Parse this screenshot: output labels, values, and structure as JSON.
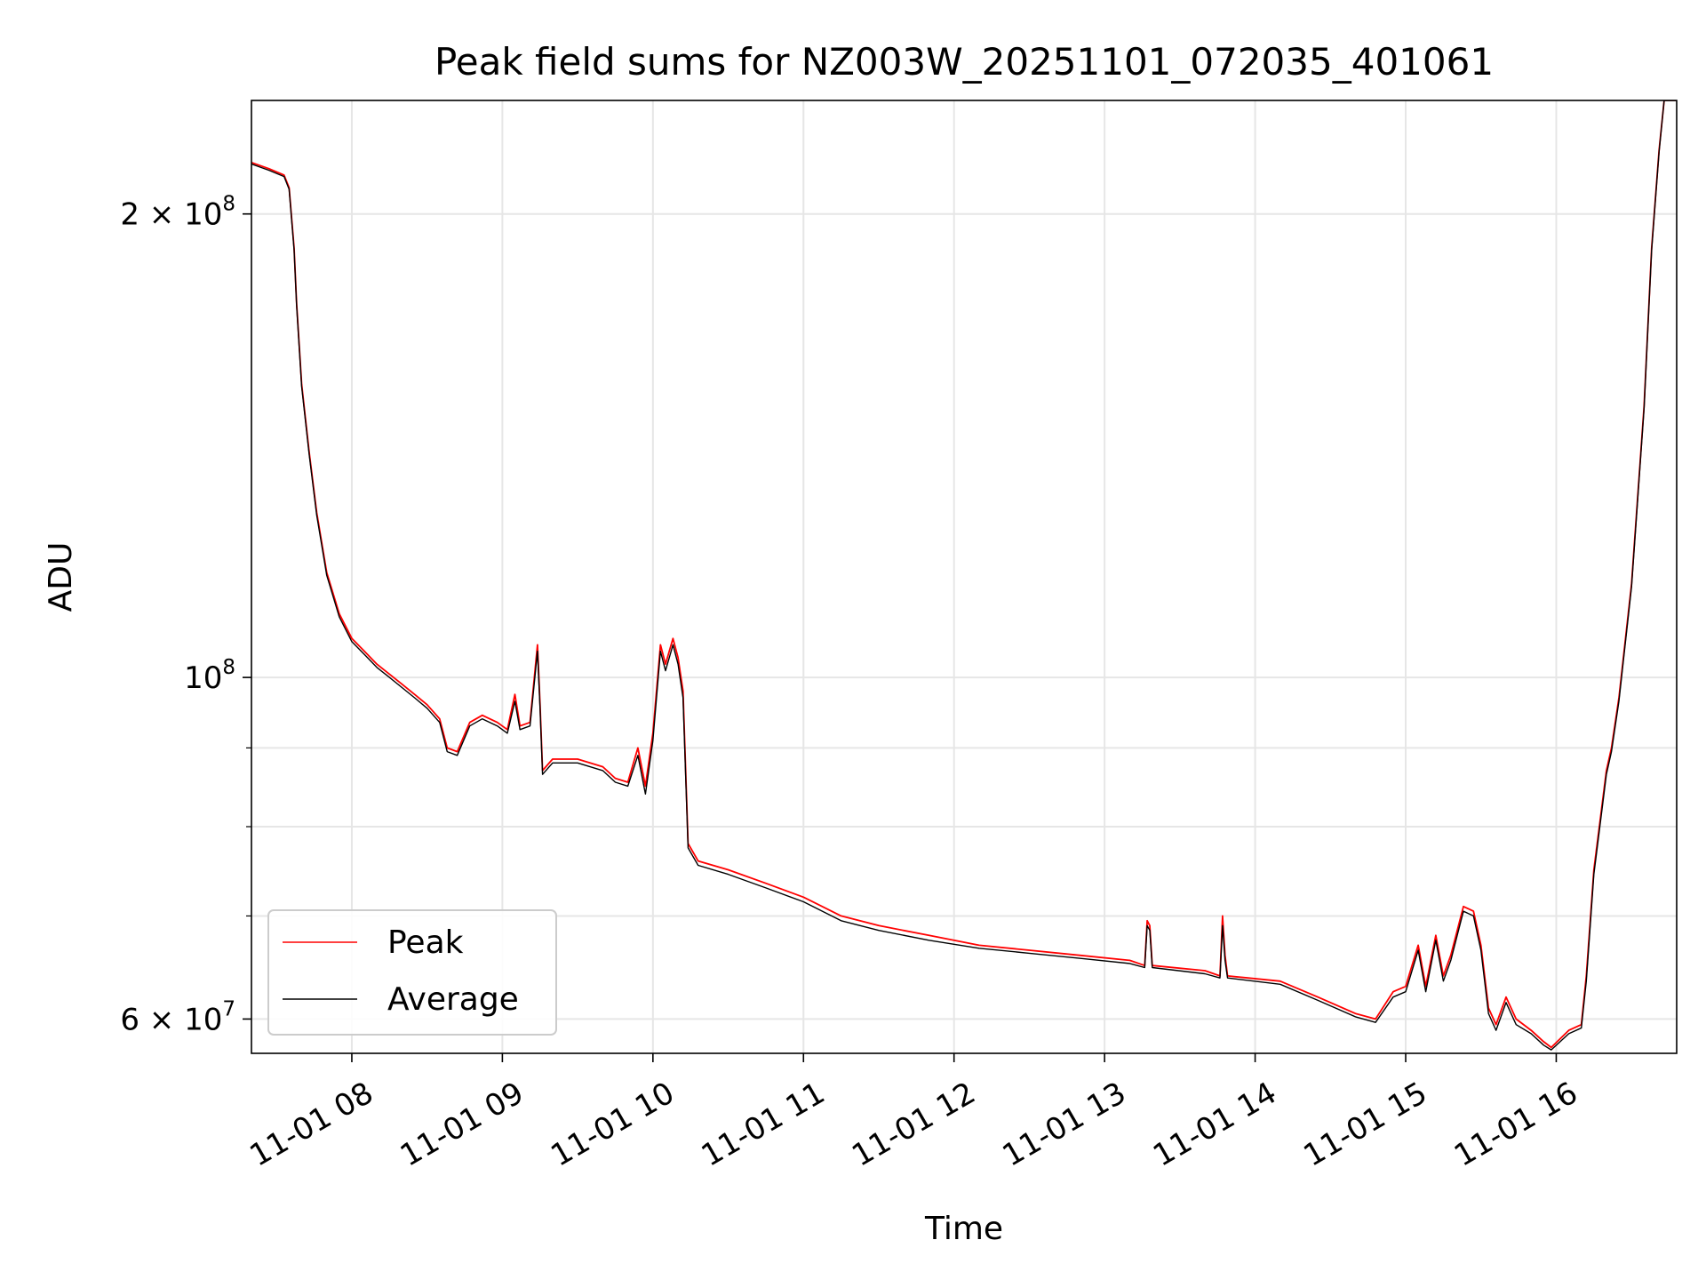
{
  "chart_data": {
    "type": "line",
    "title": "Peak field sums for NZ003W_20251101_072035_401061",
    "xlabel": "Time",
    "ylabel": "ADU",
    "yscale": "log",
    "xlim": [
      "2025-11-01 07:20",
      "2025-11-01 16:48"
    ],
    "ylim": [
      57000000,
      237000000
    ],
    "grid": true,
    "legend_position": "lower-left",
    "x_ticks": [
      {
        "t": "2025-11-01 08:00",
        "label": "11-01 08"
      },
      {
        "t": "2025-11-01 09:00",
        "label": "11-01 09"
      },
      {
        "t": "2025-11-01 10:00",
        "label": "11-01 10"
      },
      {
        "t": "2025-11-01 11:00",
        "label": "11-01 11"
      },
      {
        "t": "2025-11-01 12:00",
        "label": "11-01 12"
      },
      {
        "t": "2025-11-01 13:00",
        "label": "11-01 13"
      },
      {
        "t": "2025-11-01 14:00",
        "label": "11-01 14"
      },
      {
        "t": "2025-11-01 15:00",
        "label": "11-01 15"
      },
      {
        "t": "2025-11-01 16:00",
        "label": "11-01 16"
      }
    ],
    "y_major_ticks": [
      {
        "v": 60000000,
        "base": "6 × 10",
        "exp": "7"
      },
      {
        "v": 100000000,
        "base": "10",
        "exp": "8"
      },
      {
        "v": 200000000,
        "base": "2 × 10",
        "exp": "8"
      }
    ],
    "y_minor_ticks": [
      70000000,
      80000000,
      90000000
    ],
    "series": [
      {
        "name": "Peak",
        "color": "#ff0000",
        "points": [
          [
            "2025-11-01 07:20",
            216000000
          ],
          [
            "2025-11-01 07:27",
            214000000
          ],
          [
            "2025-11-01 07:33",
            212000000
          ],
          [
            "2025-11-01 07:35",
            208000000
          ],
          [
            "2025-11-01 07:37",
            190000000
          ],
          [
            "2025-11-01 07:38",
            175000000
          ],
          [
            "2025-11-01 07:40",
            155000000
          ],
          [
            "2025-11-01 07:43",
            140000000
          ],
          [
            "2025-11-01 07:46",
            128000000
          ],
          [
            "2025-11-01 07:50",
            117000000
          ],
          [
            "2025-11-01 07:55",
            110000000
          ],
          [
            "2025-11-01 08:00",
            106000000
          ],
          [
            "2025-11-01 08:05",
            104000000
          ],
          [
            "2025-11-01 08:10",
            102000000
          ],
          [
            "2025-11-01 08:15",
            100500000
          ],
          [
            "2025-11-01 08:20",
            99000000
          ],
          [
            "2025-11-01 08:25",
            97500000
          ],
          [
            "2025-11-01 08:30",
            96000000
          ],
          [
            "2025-11-01 08:35",
            94000000
          ],
          [
            "2025-11-01 08:38",
            90000000
          ],
          [
            "2025-11-01 08:42",
            89500000
          ],
          [
            "2025-11-01 08:47",
            93500000
          ],
          [
            "2025-11-01 08:52",
            94500000
          ],
          [
            "2025-11-01 08:58",
            93500000
          ],
          [
            "2025-11-01 09:02",
            92500000
          ],
          [
            "2025-11-01 09:05",
            97500000
          ],
          [
            "2025-11-01 09:07",
            93000000
          ],
          [
            "2025-11-01 09:11",
            93500000
          ],
          [
            "2025-11-01 09:14",
            105000000
          ],
          [
            "2025-11-01 09:15",
            96000000
          ],
          [
            "2025-11-01 09:16",
            87000000
          ],
          [
            "2025-11-01 09:20",
            88500000
          ],
          [
            "2025-11-01 09:30",
            88500000
          ],
          [
            "2025-11-01 09:40",
            87500000
          ],
          [
            "2025-11-01 09:45",
            86000000
          ],
          [
            "2025-11-01 09:50",
            85500000
          ],
          [
            "2025-11-01 09:54",
            90000000
          ],
          [
            "2025-11-01 09:57",
            85000000
          ],
          [
            "2025-11-01 10:00",
            92000000
          ],
          [
            "2025-11-01 10:03",
            105000000
          ],
          [
            "2025-11-01 10:05",
            102000000
          ],
          [
            "2025-11-01 10:08",
            106000000
          ],
          [
            "2025-11-01 10:10",
            103000000
          ],
          [
            "2025-11-01 10:12",
            98000000
          ],
          [
            "2025-11-01 10:14",
            78000000
          ],
          [
            "2025-11-01 10:18",
            76000000
          ],
          [
            "2025-11-01 10:30",
            75000000
          ],
          [
            "2025-11-01 10:45",
            73500000
          ],
          [
            "2025-11-01 11:00",
            72000000
          ],
          [
            "2025-11-01 11:15",
            70000000
          ],
          [
            "2025-11-01 11:30",
            69000000
          ],
          [
            "2025-11-01 11:50",
            68000000
          ],
          [
            "2025-11-01 12:10",
            67000000
          ],
          [
            "2025-11-01 12:30",
            66500000
          ],
          [
            "2025-11-01 12:50",
            66000000
          ],
          [
            "2025-11-01 13:10",
            65500000
          ],
          [
            "2025-11-01 13:16",
            65000000
          ],
          [
            "2025-11-01 13:17",
            69500000
          ],
          [
            "2025-11-01 13:18",
            69000000
          ],
          [
            "2025-11-01 13:19",
            65000000
          ],
          [
            "2025-11-01 13:40",
            64500000
          ],
          [
            "2025-11-01 13:46",
            64000000
          ],
          [
            "2025-11-01 13:47",
            70000000
          ],
          [
            "2025-11-01 13:48",
            66000000
          ],
          [
            "2025-11-01 13:49",
            64000000
          ],
          [
            "2025-11-01 14:10",
            63500000
          ],
          [
            "2025-11-01 14:25",
            62000000
          ],
          [
            "2025-11-01 14:40",
            60500000
          ],
          [
            "2025-11-01 14:48",
            60000000
          ],
          [
            "2025-11-01 14:55",
            62500000
          ],
          [
            "2025-11-01 15:00",
            63000000
          ],
          [
            "2025-11-01 15:05",
            67000000
          ],
          [
            "2025-11-01 15:08",
            63000000
          ],
          [
            "2025-11-01 15:12",
            68000000
          ],
          [
            "2025-11-01 15:15",
            64000000
          ],
          [
            "2025-11-01 15:18",
            66000000
          ],
          [
            "2025-11-01 15:23",
            71000000
          ],
          [
            "2025-11-01 15:27",
            70500000
          ],
          [
            "2025-11-01 15:30",
            67000000
          ],
          [
            "2025-11-01 15:33",
            61000000
          ],
          [
            "2025-11-01 15:36",
            59500000
          ],
          [
            "2025-11-01 15:40",
            62000000
          ],
          [
            "2025-11-01 15:44",
            60000000
          ],
          [
            "2025-11-01 15:50",
            59000000
          ],
          [
            "2025-11-01 15:55",
            58000000
          ],
          [
            "2025-11-01 15:58",
            57500000
          ],
          [
            "2025-11-01 16:05",
            59000000
          ],
          [
            "2025-11-01 16:10",
            59500000
          ],
          [
            "2025-11-01 16:12",
            64000000
          ],
          [
            "2025-11-01 16:15",
            75000000
          ],
          [
            "2025-11-01 16:18",
            82000000
          ],
          [
            "2025-11-01 16:20",
            87000000
          ],
          [
            "2025-11-01 16:22",
            90000000
          ],
          [
            "2025-11-01 16:25",
            97000000
          ],
          [
            "2025-11-01 16:30",
            115000000
          ],
          [
            "2025-11-01 16:35",
            150000000
          ],
          [
            "2025-11-01 16:38",
            190000000
          ],
          [
            "2025-11-01 16:41",
            220000000
          ],
          [
            "2025-11-01 16:43",
            237000000
          ],
          [
            "2025-11-01 16:48",
            237000000
          ]
        ]
      },
      {
        "name": "Average",
        "color": "#000000",
        "points": [
          [
            "2025-11-01 07:20",
            215500000
          ],
          [
            "2025-11-01 07:27",
            213500000
          ],
          [
            "2025-11-01 07:33",
            211500000
          ],
          [
            "2025-11-01 07:35",
            207500000
          ],
          [
            "2025-11-01 07:37",
            189500000
          ],
          [
            "2025-11-01 07:38",
            174500000
          ],
          [
            "2025-11-01 07:40",
            154500000
          ],
          [
            "2025-11-01 07:43",
            139500000
          ],
          [
            "2025-11-01 07:46",
            127500000
          ],
          [
            "2025-11-01 07:50",
            116500000
          ],
          [
            "2025-11-01 07:55",
            109500000
          ],
          [
            "2025-11-01 08:00",
            105500000
          ],
          [
            "2025-11-01 08:05",
            103500000
          ],
          [
            "2025-11-01 08:10",
            101500000
          ],
          [
            "2025-11-01 08:15",
            100000000
          ],
          [
            "2025-11-01 08:20",
            98500000
          ],
          [
            "2025-11-01 08:25",
            97000000
          ],
          [
            "2025-11-01 08:30",
            95500000
          ],
          [
            "2025-11-01 08:35",
            93500000
          ],
          [
            "2025-11-01 08:38",
            89500000
          ],
          [
            "2025-11-01 08:42",
            89000000
          ],
          [
            "2025-11-01 08:47",
            93000000
          ],
          [
            "2025-11-01 08:52",
            94000000
          ],
          [
            "2025-11-01 08:58",
            93000000
          ],
          [
            "2025-11-01 09:02",
            92000000
          ],
          [
            "2025-11-01 09:05",
            96500000
          ],
          [
            "2025-11-01 09:07",
            92500000
          ],
          [
            "2025-11-01 09:11",
            93000000
          ],
          [
            "2025-11-01 09:14",
            104000000
          ],
          [
            "2025-11-01 09:15",
            95500000
          ],
          [
            "2025-11-01 09:16",
            86500000
          ],
          [
            "2025-11-01 09:20",
            88000000
          ],
          [
            "2025-11-01 09:30",
            88000000
          ],
          [
            "2025-11-01 09:40",
            87000000
          ],
          [
            "2025-11-01 09:45",
            85500000
          ],
          [
            "2025-11-01 09:50",
            85000000
          ],
          [
            "2025-11-01 09:54",
            89000000
          ],
          [
            "2025-11-01 09:57",
            84000000
          ],
          [
            "2025-11-01 10:00",
            91000000
          ],
          [
            "2025-11-01 10:03",
            104000000
          ],
          [
            "2025-11-01 10:05",
            101000000
          ],
          [
            "2025-11-01 10:08",
            105000000
          ],
          [
            "2025-11-01 10:10",
            102000000
          ],
          [
            "2025-11-01 10:12",
            97000000
          ],
          [
            "2025-11-01 10:14",
            77500000
          ],
          [
            "2025-11-01 10:18",
            75500000
          ],
          [
            "2025-11-01 10:30",
            74500000
          ],
          [
            "2025-11-01 10:45",
            73000000
          ],
          [
            "2025-11-01 11:00",
            71500000
          ],
          [
            "2025-11-01 11:15",
            69500000
          ],
          [
            "2025-11-01 11:30",
            68500000
          ],
          [
            "2025-11-01 11:50",
            67500000
          ],
          [
            "2025-11-01 12:10",
            66700000
          ],
          [
            "2025-11-01 12:30",
            66200000
          ],
          [
            "2025-11-01 12:50",
            65700000
          ],
          [
            "2025-11-01 13:10",
            65200000
          ],
          [
            "2025-11-01 13:16",
            64800000
          ],
          [
            "2025-11-01 13:17",
            69000000
          ],
          [
            "2025-11-01 13:18",
            68500000
          ],
          [
            "2025-11-01 13:19",
            64800000
          ],
          [
            "2025-11-01 13:40",
            64200000
          ],
          [
            "2025-11-01 13:46",
            63800000
          ],
          [
            "2025-11-01 13:47",
            69000000
          ],
          [
            "2025-11-01 13:48",
            65500000
          ],
          [
            "2025-11-01 13:49",
            63800000
          ],
          [
            "2025-11-01 14:10",
            63200000
          ],
          [
            "2025-11-01 14:25",
            61700000
          ],
          [
            "2025-11-01 14:40",
            60200000
          ],
          [
            "2025-11-01 14:48",
            59700000
          ],
          [
            "2025-11-01 14:55",
            62000000
          ],
          [
            "2025-11-01 15:00",
            62500000
          ],
          [
            "2025-11-01 15:05",
            66500000
          ],
          [
            "2025-11-01 15:08",
            62500000
          ],
          [
            "2025-11-01 15:12",
            67500000
          ],
          [
            "2025-11-01 15:15",
            63500000
          ],
          [
            "2025-11-01 15:18",
            65500000
          ],
          [
            "2025-11-01 15:23",
            70500000
          ],
          [
            "2025-11-01 15:27",
            70000000
          ],
          [
            "2025-11-01 15:30",
            66500000
          ],
          [
            "2025-11-01 15:33",
            60500000
          ],
          [
            "2025-11-01 15:36",
            59000000
          ],
          [
            "2025-11-01 15:40",
            61500000
          ],
          [
            "2025-11-01 15:44",
            59500000
          ],
          [
            "2025-11-01 15:50",
            58700000
          ],
          [
            "2025-11-01 15:55",
            57700000
          ],
          [
            "2025-11-01 15:58",
            57300000
          ],
          [
            "2025-11-01 16:05",
            58700000
          ],
          [
            "2025-11-01 16:10",
            59200000
          ],
          [
            "2025-11-01 16:12",
            63500000
          ],
          [
            "2025-11-01 16:15",
            74500000
          ],
          [
            "2025-11-01 16:18",
            81500000
          ],
          [
            "2025-11-01 16:20",
            86500000
          ],
          [
            "2025-11-01 16:22",
            89500000
          ],
          [
            "2025-11-01 16:25",
            96500000
          ],
          [
            "2025-11-01 16:30",
            114500000
          ],
          [
            "2025-11-01 16:35",
            149500000
          ],
          [
            "2025-11-01 16:38",
            189500000
          ],
          [
            "2025-11-01 16:41",
            219500000
          ],
          [
            "2025-11-01 16:43",
            237000000
          ],
          [
            "2025-11-01 16:48",
            237000000
          ]
        ]
      }
    ]
  }
}
